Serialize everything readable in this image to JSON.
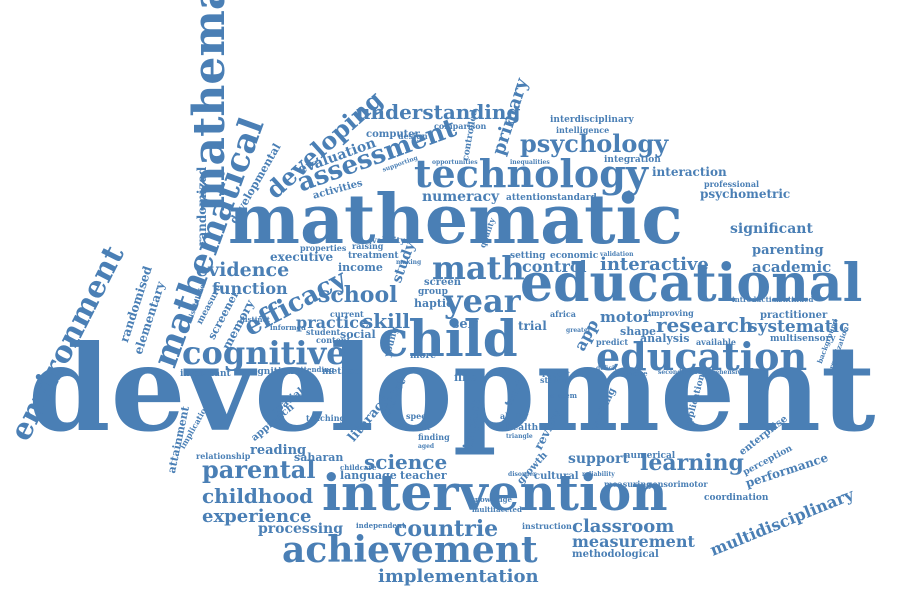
{
  "colors": {
    "ink": "#4a7fb5",
    "background": "#ffffff"
  },
  "words": {
    "development": "development",
    "mathematic": "mathematic",
    "educational": "educational",
    "intervention": "intervention",
    "child": "child",
    "mathematical_vertical": "mathematical",
    "mathematical_diagonal": "mathematical",
    "environment": "environment",
    "technology": "technology",
    "education": "education",
    "achievement": "achievement",
    "cognitive": "cognitive",
    "year": "year",
    "math": "math",
    "school": "school",
    "efficacy": "efficacy",
    "assessment": "assessment",
    "developing": "developing",
    "understanding": "understanding",
    "psychology": "psychology",
    "parental": "parental",
    "childhood": "childhood",
    "experience": "experience",
    "implementation": "implementation",
    "countrie": "countrie",
    "learning": "learning",
    "science": "science",
    "research": "research",
    "systematic": "systematic",
    "interactive": "interactive",
    "evidence": "evidence",
    "function": "function",
    "practice": "practice",
    "skill": "skill",
    "classroom": "classroom",
    "measurement": "measurement",
    "multidisciplinary": "multidisciplinary",
    "processing": "processing",
    "academic": "academic",
    "significant": "significant",
    "parenting": "parenting",
    "primary": "primary",
    "evaluation": "evaluation",
    "numeracy": "numeracy",
    "control": "control",
    "motor": "motor",
    "support": "support",
    "reading": "reading",
    "performance": "performance",
    "interaction": "interaction",
    "psychometric": "psychometric",
    "randomized": "randomized",
    "developmental": "developmental",
    "randomised": "randomised",
    "elementary": "elementary",
    "memory": "memory",
    "screener": "screener",
    "executive": "executive",
    "income": "income",
    "study": "study",
    "social": "social",
    "app": "app",
    "analysis": "analysis",
    "practitioner": "practitioner",
    "multisensory": "multisensory",
    "attainment": "attainment",
    "approach": "approach",
    "spatial": "spatial",
    "literacy": "literacy",
    "tablet": "tablet",
    "language": "language",
    "saharan": "saharan",
    "teacher": "teacher",
    "impact": "impact",
    "review": "review",
    "health": "health",
    "cultural": "cultural",
    "growth": "growth",
    "numerical": "numerical",
    "enterprise": "enterprise",
    "perception": "perception",
    "application": "application",
    "coordination": "coordination",
    "methodological": "methodological",
    "self": "self",
    "trial": "trial",
    "activities": "activities",
    "computer": "computer",
    "comparison": "comparison",
    "controlled": "controlled",
    "interdisciplinary": "interdisciplinary",
    "intelligence": "intelligence",
    "integration": "integration",
    "attention": "attention",
    "standard": "standard",
    "professional": "professional",
    "quality": "quality",
    "treatment": "treatment",
    "screen": "screen",
    "setting": "setting",
    "economic": "economic",
    "africa": "africa",
    "improving": "improving",
    "predict": "predict",
    "shape": "shape",
    "available": "available",
    "cognition": "cognition",
    "important": "important",
    "method": "method",
    "young": "young",
    "current": "current",
    "content": "content",
    "group": "group",
    "haptic": "haptic",
    "student": "student",
    "properties": "properties",
    "design": "design",
    "raising": "raising",
    "validity": "validity",
    "more": "more",
    "fine": "fine",
    "touch": "touch",
    "working": "working",
    "speed": "speed",
    "result": "result",
    "finding": "finding",
    "teaching": "teaching",
    "measuring": "measuring",
    "sensorimotor": "sensorimotor",
    "implication": "implication",
    "relationship": "relationship",
    "instruction": "instruction",
    "knowledge": "knowledge",
    "multifaceted": "multifaceted",
    "independent": "independent",
    "software": "software",
    "report": "report",
    "status": "status",
    "ability": "ability",
    "system": "system",
    "introduction": "introduction",
    "continued": "continued",
    "background": "background",
    "organization": "organization",
    "measure": "measure",
    "disabilities": "disabilities",
    "distinct": "distinct",
    "informed": "informed",
    "attending": "attending",
    "childcare": "childcare",
    "disorder": "disorder",
    "reliability": "reliability",
    "deficit": "deficit",
    "secondary": "secondary",
    "opportunities": "opportunities",
    "inequalities": "inequalities",
    "supporting": "supporting",
    "making": "making",
    "validation": "validation",
    "triangle": "triangle",
    "greater": "greater",
    "comprehensive": "comprehensive",
    "aged": "aged"
  }
}
